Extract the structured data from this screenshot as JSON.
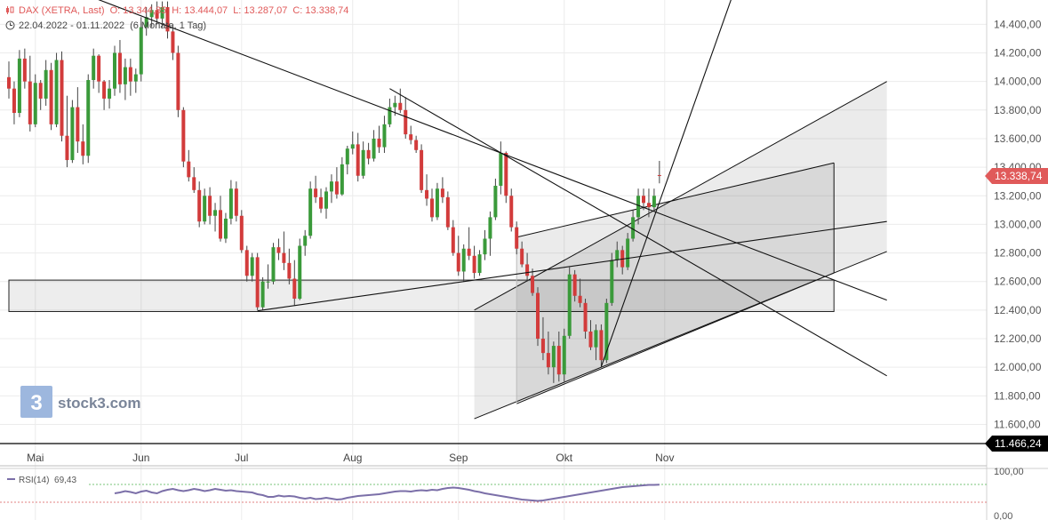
{
  "header": {
    "instrument": "DAX (XETRA, Last)",
    "open": "O: 13.344,85",
    "high": "H: 13.444,07",
    "low": "L: 13.287,07",
    "close": "C: 13.338,74",
    "range": "22.04.2022 - 01.11.2022",
    "period": "(6 Monate, 1 Tag)",
    "icons": [
      "candlestick-icon",
      "clock-icon"
    ]
  },
  "branding": {
    "logo_text": "stock3.com",
    "logo_glyph": "3"
  },
  "rsi": {
    "label": "RSI(14)",
    "value": "69,43",
    "axis_labels": [
      "100,00",
      "0,00"
    ],
    "upper_level": 70,
    "lower_level": 30
  },
  "colors": {
    "up": "#3a9a3a",
    "down": "#d23b3b",
    "last_price": "#e05a5a",
    "line": "#000000",
    "rsi": "#7b6fa8"
  },
  "chart_data": {
    "type": "candlestick",
    "y_axis": {
      "ticks": [
        11600,
        11800,
        12000,
        12200,
        12400,
        12600,
        12800,
        13000,
        13200,
        13400,
        13600,
        13800,
        14000,
        14200,
        14400
      ],
      "tick_labels": [
        "11.600,00",
        "11.800,00",
        "12.000,00",
        "12.200,00",
        "12.400,00",
        "12.600,00",
        "12.800,00",
        "13.000,00",
        "13.200,00",
        "13.400,00",
        "13.600,00",
        "13.800,00",
        "14.000,00",
        "14.200,00",
        "14.400,00"
      ],
      "range": [
        11460,
        14570
      ]
    },
    "x_axis": {
      "labels": [
        "Mai",
        "Jun",
        "Jul",
        "Aug",
        "Sep",
        "Okt",
        "Nov"
      ],
      "label_index": [
        5,
        25,
        44,
        65,
        85,
        105,
        124
      ]
    },
    "price_labels": [
      {
        "value": 13338.74,
        "text": "13.338,74",
        "style": "last"
      },
      {
        "value": 11466.24,
        "text": "11.466,24",
        "style": "line"
      }
    ],
    "horizontal_line": 11466.24,
    "zone": {
      "from_index": 0,
      "to_index": 156,
      "low": 12390,
      "high": 12610
    },
    "channels": [
      {
        "upper": [
          [
            96,
            12910
          ],
          [
            156,
            13430
          ]
        ],
        "lower": [
          [
            96,
            11745
          ],
          [
            156,
            12660
          ]
        ]
      },
      {
        "upper": [
          [
            88,
            12400
          ],
          [
            166,
            14000
          ]
        ],
        "lower": [
          [
            88,
            11640
          ],
          [
            166,
            12810
          ]
        ]
      }
    ],
    "trendlines": [
      [
        [
          15,
          14600
        ],
        [
          166,
          12470
        ]
      ],
      [
        [
          72,
          13950
        ],
        [
          166,
          11940
        ]
      ],
      [
        [
          47,
          12395
        ],
        [
          166,
          13020
        ]
      ],
      [
        [
          112,
          12005
        ],
        [
          137,
          14620
        ]
      ]
    ],
    "candles": [
      [
        14030,
        14140,
        13880,
        13950
      ],
      [
        13950,
        14000,
        13700,
        13780
      ],
      [
        13780,
        14220,
        13750,
        14160
      ],
      [
        14160,
        14230,
        13950,
        14000
      ],
      [
        14000,
        14180,
        13650,
        13700
      ],
      [
        13700,
        14050,
        13680,
        13990
      ],
      [
        13990,
        14010,
        13800,
        13880
      ],
      [
        13880,
        14150,
        13830,
        14080
      ],
      [
        14080,
        14130,
        13660,
        13700
      ],
      [
        13700,
        14200,
        13680,
        14150
      ],
      [
        14150,
        14210,
        13580,
        13620
      ],
      [
        13620,
        13900,
        13400,
        13450
      ],
      [
        13450,
        13870,
        13430,
        13820
      ],
      [
        13820,
        13960,
        13500,
        13580
      ],
      [
        13580,
        13700,
        13420,
        13480
      ],
      [
        13480,
        14050,
        13430,
        14010
      ],
      [
        14010,
        14230,
        13950,
        14180
      ],
      [
        14180,
        14190,
        13920,
        14000
      ],
      [
        14000,
        14010,
        13800,
        13880
      ],
      [
        13880,
        14010,
        13810,
        13950
      ],
      [
        13950,
        14250,
        13900,
        14200
      ],
      [
        14200,
        14290,
        13920,
        13980
      ],
      [
        13980,
        14160,
        13870,
        14100
      ],
      [
        14100,
        14160,
        13900,
        14000
      ],
      [
        14000,
        14090,
        13920,
        14050
      ],
      [
        14050,
        14450,
        14000,
        14380
      ],
      [
        14380,
        14520,
        14320,
        14450
      ],
      [
        14450,
        14540,
        14380,
        14500
      ],
      [
        14500,
        14560,
        14400,
        14440
      ],
      [
        14440,
        14560,
        14380,
        14520
      ],
      [
        14520,
        14560,
        14300,
        14350
      ],
      [
        14350,
        14400,
        14150,
        14200
      ],
      [
        14200,
        14250,
        13750,
        13800
      ],
      [
        13800,
        13820,
        13400,
        13440
      ],
      [
        13440,
        13520,
        13300,
        13330
      ],
      [
        13330,
        13400,
        13220,
        13240
      ],
      [
        13240,
        13300,
        12980,
        13020
      ],
      [
        13020,
        13250,
        13000,
        13200
      ],
      [
        13200,
        13260,
        13000,
        13060
      ],
      [
        13060,
        13150,
        12950,
        13100
      ],
      [
        13100,
        13200,
        12880,
        12900
      ],
      [
        12900,
        13080,
        12870,
        13040
      ],
      [
        13040,
        13310,
        13000,
        13250
      ],
      [
        13250,
        13300,
        13020,
        13060
      ],
      [
        13060,
        13100,
        12800,
        12820
      ],
      [
        12820,
        12850,
        12600,
        12640
      ],
      [
        12640,
        12800,
        12600,
        12770
      ],
      [
        12770,
        12800,
        12400,
        12420
      ],
      [
        12420,
        12630,
        12400,
        12600
      ],
      [
        12600,
        12720,
        12550,
        12600
      ],
      [
        12600,
        12870,
        12580,
        12840
      ],
      [
        12840,
        12900,
        12750,
        12800
      ],
      [
        12800,
        12950,
        12680,
        12730
      ],
      [
        12730,
        12830,
        12580,
        12620
      ],
      [
        12620,
        12750,
        12430,
        12480
      ],
      [
        12480,
        12900,
        12470,
        12850
      ],
      [
        12850,
        12960,
        12780,
        12920
      ],
      [
        12920,
        13300,
        12900,
        13250
      ],
      [
        13250,
        13340,
        13150,
        13190
      ],
      [
        13190,
        13250,
        13080,
        13110
      ],
      [
        13110,
        13260,
        13040,
        13230
      ],
      [
        13230,
        13350,
        13150,
        13300
      ],
      [
        13300,
        13400,
        13180,
        13210
      ],
      [
        13210,
        13470,
        13200,
        13420
      ],
      [
        13420,
        13550,
        13350,
        13530
      ],
      [
        13530,
        13650,
        13490,
        13560
      ],
      [
        13560,
        13640,
        13300,
        13340
      ],
      [
        13340,
        13580,
        13320,
        13520
      ],
      [
        13520,
        13570,
        13420,
        13460
      ],
      [
        13460,
        13660,
        13440,
        13600
      ],
      [
        13600,
        13690,
        13500,
        13540
      ],
      [
        13540,
        13760,
        13500,
        13700
      ],
      [
        13700,
        13880,
        13680,
        13820
      ],
      [
        13820,
        13900,
        13760,
        13850
      ],
      [
        13850,
        13950,
        13780,
        13800
      ],
      [
        13800,
        13890,
        13600,
        13630
      ],
      [
        13630,
        13690,
        13560,
        13590
      ],
      [
        13590,
        13620,
        13500,
        13520
      ],
      [
        13520,
        13560,
        13220,
        13240
      ],
      [
        13240,
        13350,
        13130,
        13180
      ],
      [
        13180,
        13250,
        13020,
        13050
      ],
      [
        13050,
        13290,
        13030,
        13250
      ],
      [
        13250,
        13330,
        13150,
        13190
      ],
      [
        13190,
        13230,
        12960,
        12980
      ],
      [
        12980,
        13030,
        12780,
        12800
      ],
      [
        12800,
        12920,
        12640,
        12670
      ],
      [
        12670,
        12860,
        12600,
        12830
      ],
      [
        12830,
        12980,
        12750,
        12780
      ],
      [
        12780,
        12850,
        12620,
        12660
      ],
      [
        12660,
        12820,
        12640,
        12790
      ],
      [
        12790,
        12960,
        12750,
        12900
      ],
      [
        12900,
        13090,
        12780,
        13050
      ],
      [
        13050,
        13320,
        13030,
        13270
      ],
      [
        13270,
        13580,
        13210,
        13500
      ],
      [
        13500,
        13510,
        13150,
        13200
      ],
      [
        13200,
        13250,
        12950,
        12980
      ],
      [
        12980,
        13020,
        12790,
        12830
      ],
      [
        12830,
        12880,
        12700,
        12720
      ],
      [
        12720,
        12800,
        12600,
        12640
      ],
      [
        12640,
        12690,
        12500,
        12520
      ],
      [
        12520,
        12560,
        12150,
        12200
      ],
      [
        12200,
        12350,
        12050,
        12100
      ],
      [
        12100,
        12250,
        11950,
        12000
      ],
      [
        12000,
        12180,
        11890,
        12150
      ],
      [
        12150,
        12250,
        11900,
        11950
      ],
      [
        11950,
        12270,
        11900,
        12220
      ],
      [
        12220,
        12700,
        12200,
        12650
      ],
      [
        12650,
        12680,
        12460,
        12500
      ],
      [
        12500,
        12620,
        12420,
        12450
      ],
      [
        12450,
        12480,
        12200,
        12250
      ],
      [
        12250,
        12330,
        12120,
        12140
      ],
      [
        12140,
        12300,
        12050,
        12260
      ],
      [
        12260,
        12300,
        12000,
        12050
      ],
      [
        12050,
        12480,
        12030,
        12450
      ],
      [
        12450,
        12800,
        12430,
        12750
      ],
      [
        12750,
        12880,
        12700,
        12820
      ],
      [
        12820,
        12850,
        12650,
        12700
      ],
      [
        12700,
        12940,
        12680,
        12900
      ],
      [
        12900,
        13100,
        12880,
        13050
      ],
      [
        13050,
        13250,
        13000,
        13200
      ],
      [
        13200,
        13250,
        13100,
        13150
      ],
      [
        13150,
        13250,
        13050,
        13120
      ],
      [
        13120,
        13250,
        13090,
        13200
      ],
      [
        13344.85,
        13444.07,
        13287.07,
        13338.74
      ]
    ],
    "rsi_values": [
      50,
      52,
      55,
      53,
      50,
      54,
      56,
      52,
      50,
      55,
      58,
      60,
      57,
      55,
      57,
      60,
      58,
      55,
      57,
      60,
      58,
      56,
      57,
      55,
      54,
      53,
      52,
      48,
      46,
      42,
      42,
      45,
      43,
      44,
      43,
      40,
      38,
      40,
      37,
      38,
      40,
      38,
      36,
      37,
      40,
      42,
      44,
      45,
      46,
      47,
      48,
      50,
      52,
      54,
      55,
      55,
      54,
      56,
      57,
      56,
      58,
      57,
      60,
      62,
      63,
      62,
      60,
      58,
      55,
      53,
      50,
      48,
      46,
      44,
      42,
      40,
      38,
      36,
      35,
      34,
      33,
      34,
      36,
      38,
      40,
      42,
      44,
      46,
      48,
      50,
      52,
      54,
      56,
      58,
      60,
      62,
      64,
      65,
      66,
      67,
      68,
      69,
      69,
      69.43
    ]
  }
}
